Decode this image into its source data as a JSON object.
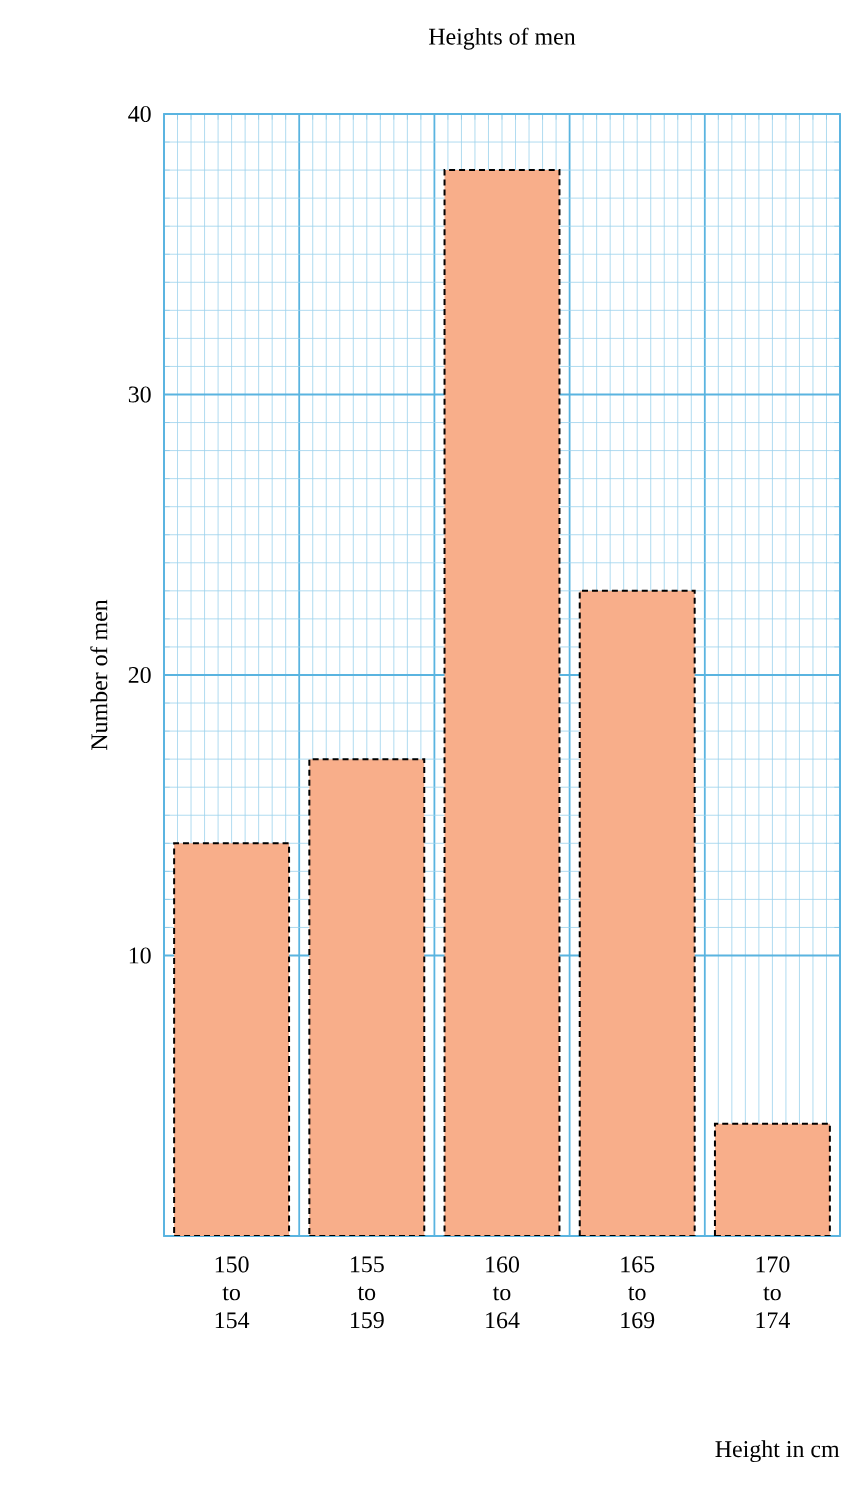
{
  "chart_data": {
    "type": "bar",
    "title": "Heights of men",
    "xlabel": "Height in cm",
    "ylabel": "Number of men",
    "categories": [
      "150 to 154",
      "155 to 159",
      "160 to 164",
      "165 to 169",
      "170 to 174"
    ],
    "values": [
      14,
      17,
      38,
      23,
      4
    ],
    "color": "#f8ae8a",
    "ylim": [
      0,
      40
    ],
    "yticks": [
      10,
      20,
      30,
      40
    ],
    "grid": true
  }
}
